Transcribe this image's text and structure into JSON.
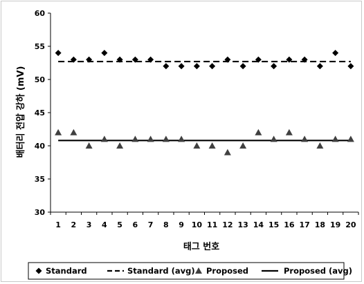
{
  "chart_data": {
    "type": "scatter",
    "xlabel": "태그 번호",
    "ylabel": "배터리 전압 강하 (mV)",
    "x": [
      1,
      2,
      3,
      4,
      5,
      6,
      7,
      8,
      9,
      10,
      11,
      12,
      13,
      14,
      15,
      16,
      17,
      18,
      19,
      20
    ],
    "xlim": [
      0.5,
      20.5
    ],
    "ylim": [
      30,
      60
    ],
    "yticks": [
      30,
      35,
      40,
      45,
      50,
      55,
      60
    ],
    "grid": false,
    "legend_position": "bottom",
    "series": [
      {
        "name": "Standard",
        "kind": "scatter",
        "marker": "diamond",
        "values": [
          54,
          53,
          53,
          54,
          53,
          53,
          53,
          52,
          52,
          52,
          52,
          53,
          52,
          53,
          52,
          53,
          53,
          52,
          54,
          52
        ]
      },
      {
        "name": "Standard (avg)",
        "kind": "line",
        "style": "dashed",
        "value": 52.7
      },
      {
        "name": "Proposed",
        "kind": "scatter",
        "marker": "triangle",
        "values": [
          42,
          42,
          40,
          41,
          40,
          41,
          41,
          41,
          41,
          40,
          40,
          39,
          40,
          42,
          41,
          42,
          41,
          40,
          41,
          41
        ]
      },
      {
        "name": "Proposed (avg)",
        "kind": "line",
        "style": "solid",
        "value": 40.8
      }
    ],
    "colors": {
      "standard_marker": "#000000",
      "proposed_marker": "#404040",
      "line": "#000000"
    }
  }
}
